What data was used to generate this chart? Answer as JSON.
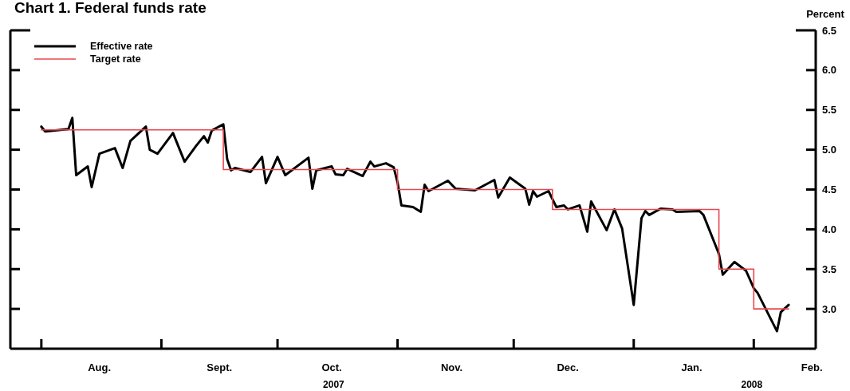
{
  "chart_data": {
    "type": "line",
    "title": "Chart 1. Federal funds rate",
    "ylabel": "Percent",
    "legend": "top left",
    "grid": false,
    "marker": "none",
    "line_style": "solid",
    "xlim": [
      "2007-07-24",
      "2008-02-17"
    ],
    "xticks": [
      {
        "value": "2007-08-01",
        "label": null
      },
      {
        "value": "2007-08-16",
        "label": "Aug."
      },
      {
        "value": "2007-09-01",
        "label": null
      },
      {
        "value": "2007-09-16",
        "label": "Sept."
      },
      {
        "value": "2007-10-01",
        "label": null
      },
      {
        "value": "2007-10-15",
        "label": "Oct."
      },
      {
        "value": "2007-11-01",
        "label": null
      },
      {
        "value": "2007-11-15",
        "label": "Nov."
      },
      {
        "value": "2007-12-01",
        "label": null
      },
      {
        "value": "2007-12-15",
        "label": "Dec."
      },
      {
        "value": "2008-01-01",
        "label": null
      },
      {
        "value": "2008-01-16",
        "label": "Jan."
      },
      {
        "value": "2008-02-01",
        "label": null
      },
      {
        "value": "2008-02-16",
        "label": "Feb."
      }
    ],
    "ylim": [
      2.5,
      6.5
    ],
    "yticks": [
      {
        "value": 3,
        "label": "3.0"
      },
      {
        "value": 3.5,
        "label": "3.5"
      },
      {
        "value": 4,
        "label": "4.0"
      },
      {
        "value": 4.5,
        "label": "4.5"
      },
      {
        "value": 5,
        "label": "5.0"
      },
      {
        "value": 5.5,
        "label": "5.5"
      },
      {
        "value": 6,
        "label": "6.0"
      },
      {
        "value": 6.5,
        "label": "6.5"
      }
    ],
    "annotations": [
      "2007",
      "2008"
    ],
    "series": [
      {
        "name": "Effective rate",
        "color": "#000000",
        "type": "line",
        "x": [
          "2007-08-01",
          "2007-08-02",
          "2007-08-08",
          "2007-08-09",
          "2007-08-10",
          "2007-08-13",
          "2007-08-14",
          "2007-08-16",
          "2007-08-20",
          "2007-08-22",
          "2007-08-24",
          "2007-08-28",
          "2007-08-29",
          "2007-08-31",
          "2007-09-04",
          "2007-09-07",
          "2007-09-10",
          "2007-09-12",
          "2007-09-13",
          "2007-09-14",
          "2007-09-17",
          "2007-09-18",
          "2007-09-19",
          "2007-09-20",
          "2007-09-24",
          "2007-09-27",
          "2007-09-28",
          "2007-10-01",
          "2007-10-03",
          "2007-10-09",
          "2007-10-10",
          "2007-10-11",
          "2007-10-15",
          "2007-10-16",
          "2007-10-18",
          "2007-10-19",
          "2007-10-23",
          "2007-10-25",
          "2007-10-26",
          "2007-10-29",
          "2007-10-31",
          "2007-11-01",
          "2007-11-02",
          "2007-11-05",
          "2007-11-07",
          "2007-11-08",
          "2007-11-09",
          "2007-11-14",
          "2007-11-16",
          "2007-11-21",
          "2007-11-26",
          "2007-11-27",
          "2007-11-30",
          "2007-12-04",
          "2007-12-05",
          "2007-12-06",
          "2007-12-07",
          "2007-12-10",
          "2007-12-12",
          "2007-12-14",
          "2007-12-15",
          "2007-12-18",
          "2007-12-20",
          "2007-12-21",
          "2007-12-25",
          "2007-12-27",
          "2007-12-29",
          "2008-01-01",
          "2008-01-03",
          "2008-01-04",
          "2008-01-05",
          "2008-01-08",
          "2008-01-11",
          "2008-01-12",
          "2008-01-18",
          "2008-01-19",
          "2008-01-23",
          "2008-01-24",
          "2008-01-27",
          "2008-01-30",
          "2008-02-01",
          "2008-02-02",
          "2008-02-07",
          "2008-02-08",
          "2008-02-10"
        ],
        "values": [
          5.29,
          5.23,
          5.26,
          5.4,
          4.68,
          4.79,
          4.53,
          4.95,
          5.02,
          4.77,
          5.11,
          5.29,
          5.0,
          4.95,
          5.21,
          4.85,
          5.05,
          5.17,
          5.09,
          5.24,
          5.32,
          4.88,
          4.74,
          4.77,
          4.72,
          4.91,
          4.58,
          4.91,
          4.68,
          4.9,
          4.51,
          4.74,
          4.79,
          4.69,
          4.68,
          4.76,
          4.67,
          4.85,
          4.79,
          4.83,
          4.78,
          4.59,
          4.3,
          4.28,
          4.22,
          4.56,
          4.48,
          4.61,
          4.51,
          4.49,
          4.62,
          4.4,
          4.65,
          4.51,
          4.31,
          4.48,
          4.41,
          4.48,
          4.28,
          4.3,
          4.25,
          4.3,
          3.97,
          4.35,
          3.99,
          4.25,
          4.01,
          3.05,
          4.14,
          4.23,
          4.18,
          4.26,
          4.25,
          4.22,
          4.23,
          4.18,
          3.69,
          3.43,
          3.59,
          3.48,
          3.26,
          3.2,
          2.72,
          2.96,
          3.05
        ]
      },
      {
        "name": "Target rate",
        "color": "#e8474f",
        "type": "step",
        "x": [
          "2007-08-01",
          "2007-09-17",
          "2007-11-01",
          "2007-12-11",
          "2008-01-23",
          "2008-02-01",
          "2008-02-10"
        ],
        "values": [
          5.25,
          4.75,
          4.5,
          4.25,
          3.5,
          3.0,
          3.0
        ]
      }
    ]
  }
}
